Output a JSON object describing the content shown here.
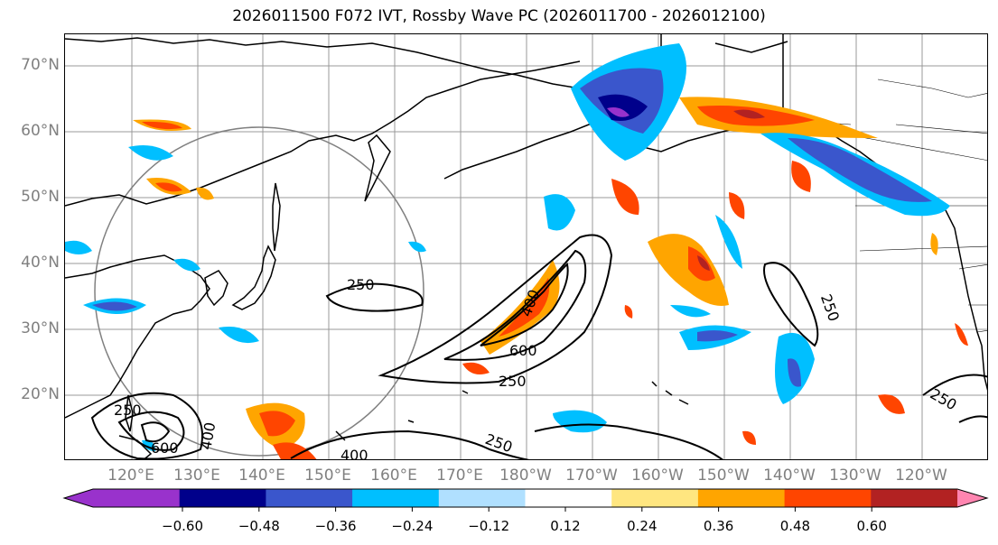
{
  "title": "2026011500 F072 IVT, Rossby Wave PC (2026011700 - 2026012100)",
  "lat_labels": [
    "70°N",
    "60°N",
    "50°N",
    "40°N",
    "30°N",
    "20°N"
  ],
  "lon_labels": [
    "120°E",
    "130°E",
    "140°E",
    "150°E",
    "160°E",
    "170°E",
    "180°W",
    "170°W",
    "160°W",
    "150°W",
    "140°W",
    "130°W",
    "120°W"
  ],
  "colorbar": {
    "ticks": [
      "−0.60",
      "−0.48",
      "−0.36",
      "−0.24",
      "−0.12",
      "0.12",
      "0.24",
      "0.36",
      "0.48",
      "0.60"
    ],
    "colors": [
      "#9932cc",
      "#00008b",
      "#3a56cc",
      "#00bfff",
      "#b0e0ff",
      "#ffffff",
      "#ffe680",
      "#ffa500",
      "#ff4500",
      "#b22222",
      "#ff85b0"
    ]
  },
  "contour_labels": [
    "250",
    "400",
    "600",
    "250",
    "250",
    "250",
    "400",
    "250",
    "250",
    "400",
    "600"
  ]
}
